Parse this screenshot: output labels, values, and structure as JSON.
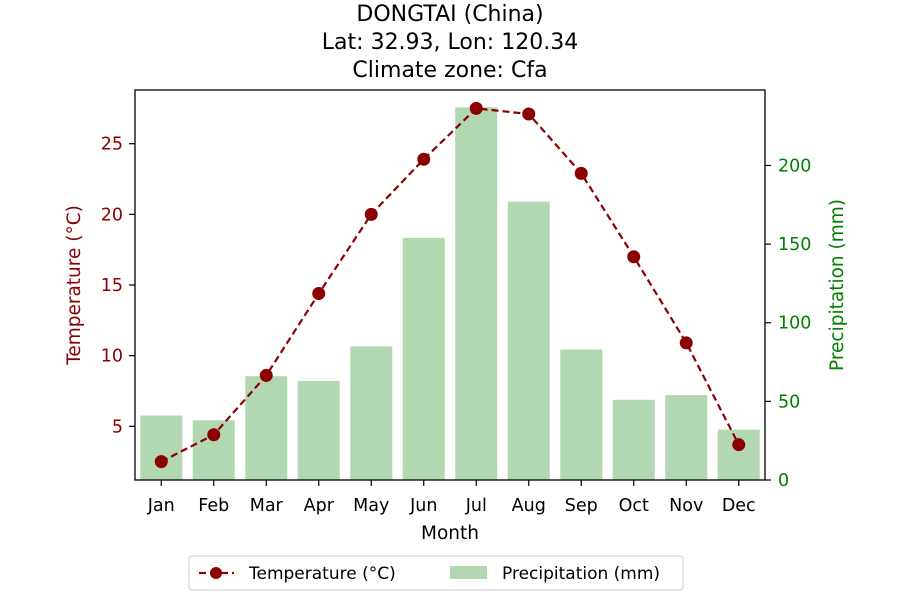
{
  "chart_data": {
    "type": "bar+line",
    "title": [
      "DONGTAI (China)",
      "Lat: 32.93, Lon: 120.34",
      "Climate zone: Cfa"
    ],
    "xlabel": "Month",
    "categories": [
      "Jan",
      "Feb",
      "Mar",
      "Apr",
      "May",
      "Jun",
      "Jul",
      "Aug",
      "Sep",
      "Oct",
      "Nov",
      "Dec"
    ],
    "temperature": {
      "name": "Temperature (°C)",
      "axis": "left",
      "label": "Temperature (°C)",
      "ylim": [
        1.2,
        28.8
      ],
      "ticks": [
        5,
        10,
        15,
        20,
        25
      ],
      "tick_labels": [
        "5",
        "10",
        "15",
        "20",
        "25"
      ],
      "values": [
        2.5,
        4.4,
        8.6,
        14.4,
        20.0,
        23.9,
        27.5,
        27.1,
        22.9,
        17.0,
        10.9,
        3.7
      ],
      "color": "#8b0000",
      "linestyle": "dashed",
      "marker": "circle"
    },
    "precipitation": {
      "name": "Precipitation (mm)",
      "axis": "right",
      "label": "Precipitation (mm)",
      "ylim": [
        0,
        248
      ],
      "ticks": [
        0,
        50,
        100,
        150,
        200
      ],
      "tick_labels": [
        "0",
        "50",
        "100",
        "150",
        "200"
      ],
      "values": [
        41,
        38,
        66,
        63,
        85,
        154,
        237,
        177,
        83,
        51,
        54,
        32
      ],
      "color": "#b2d8b2",
      "axis_color": "#008000"
    },
    "legend": {
      "placement": "bottom-center",
      "entries": [
        "Temperature (°C)",
        "Precipitation (mm)"
      ]
    },
    "grid": false
  }
}
